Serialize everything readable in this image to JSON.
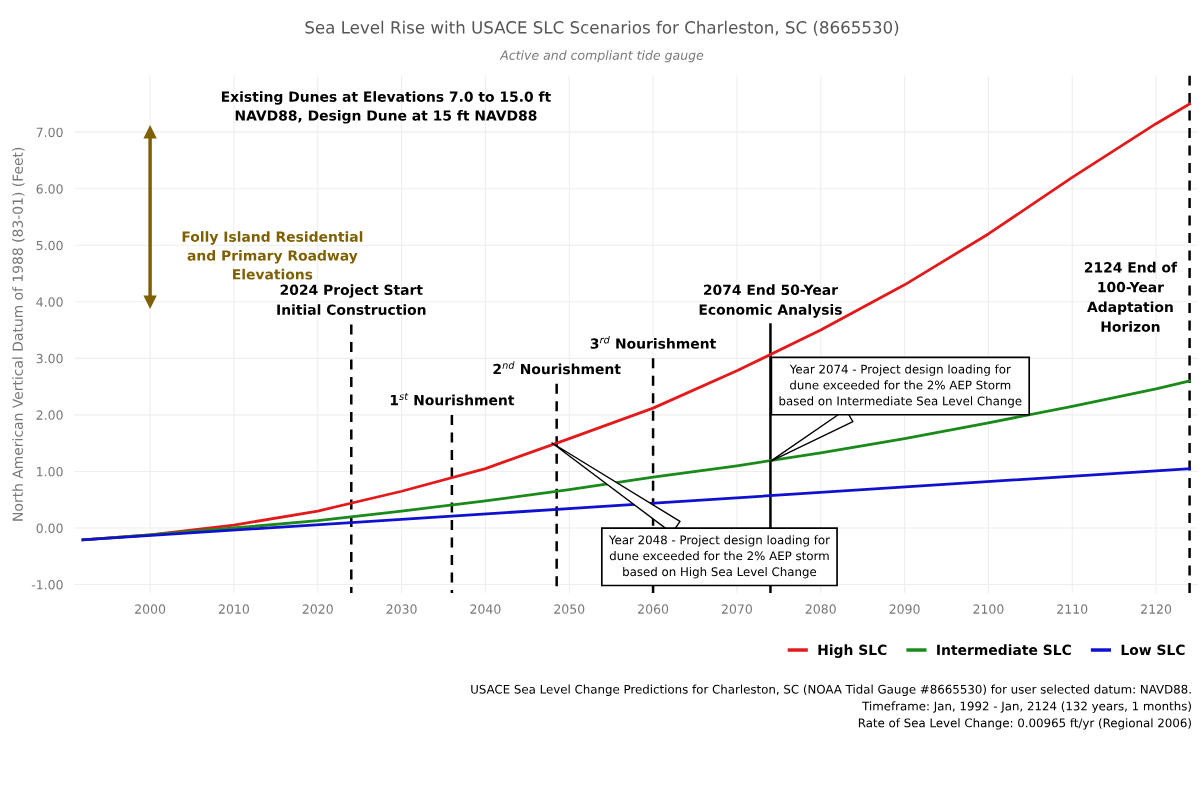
{
  "chart_data": {
    "type": "line",
    "title": "Sea Level Rise with USACE SLC Scenarios for Charleston, SC (8665530)",
    "subtitle": "Active and compliant tide gauge",
    "ylabel": "North American Vertical Datum of 1988 (83-01) (Feet)",
    "xlim": [
      1991,
      2125
    ],
    "ylim": [
      -1.15,
      8.0
    ],
    "xticks": [
      2000,
      2010,
      2020,
      2030,
      2040,
      2050,
      2060,
      2070,
      2080,
      2090,
      2100,
      2110,
      2120
    ],
    "yticks": [
      {
        "value": -1,
        "label": "-1.00"
      },
      {
        "value": 0,
        "label": "0.00"
      },
      {
        "value": 1,
        "label": "1.00"
      },
      {
        "value": 2,
        "label": "2.00"
      },
      {
        "value": 3,
        "label": "3.00"
      },
      {
        "value": 4,
        "label": "4.00"
      },
      {
        "value": 5,
        "label": "5.00"
      },
      {
        "value": 6,
        "label": "6.00"
      },
      {
        "value": 7,
        "label": "7.00"
      }
    ],
    "grid": true,
    "legend": "bottom right",
    "line_style": "solid",
    "series": [
      {
        "name": "High SLC",
        "color": "#e31a1c",
        "x": [
          1992,
          2000,
          2010,
          2020,
          2030,
          2040,
          2050,
          2060,
          2070,
          2080,
          2090,
          2100,
          2110,
          2120,
          2124
        ],
        "values": [
          -0.21,
          -0.12,
          0.05,
          0.3,
          0.65,
          1.05,
          1.58,
          2.12,
          2.78,
          3.5,
          4.3,
          5.2,
          6.2,
          7.15,
          7.5
        ]
      },
      {
        "name": "Intermediate SLC",
        "color": "#1a8a1a",
        "x": [
          1992,
          2000,
          2010,
          2020,
          2030,
          2040,
          2050,
          2060,
          2070,
          2080,
          2090,
          2100,
          2110,
          2120,
          2124
        ],
        "values": [
          -0.21,
          -0.12,
          0.0,
          0.13,
          0.3,
          0.48,
          0.68,
          0.9,
          1.1,
          1.33,
          1.58,
          1.86,
          2.15,
          2.46,
          2.6
        ]
      },
      {
        "name": "Low SLC",
        "color": "#1010d0",
        "x": [
          1992,
          2124
        ],
        "values": [
          -0.21,
          1.05
        ]
      },
      {
        "color": "#000000",
        "line_style": "dashed",
        "x": [
          2024,
          2024
        ],
        "values": [
          3.6,
          -1.15
        ]
      },
      {
        "color": "#000000",
        "line_style": "dashed",
        "x": [
          2036,
          2036
        ],
        "values": [
          2.0,
          -1.15
        ]
      },
      {
        "color": "#000000",
        "line_style": "dashed",
        "x": [
          2048.5,
          2048.5
        ],
        "values": [
          2.55,
          -1.15
        ]
      },
      {
        "color": "#000000",
        "line_style": "dashed",
        "x": [
          2060,
          2060
        ],
        "values": [
          3.0,
          -1.15
        ]
      },
      {
        "color": "#000000",
        "line_style": "solid",
        "x": [
          2074,
          2074
        ],
        "values": [
          3.6,
          -1.15
        ]
      },
      {
        "color": "#000000",
        "line_style": "dashed",
        "x": [
          2124,
          2124
        ],
        "values": [
          8.0,
          -1.15
        ]
      },
      {
        "color": "#7f6000",
        "line_style": "solid",
        "marker": "triangle",
        "x": [
          2000,
          2000
        ],
        "values": [
          7.0,
          4.0
        ]
      }
    ],
    "annotations": [
      "Folly Island Residential\nand Primary Roadway\nElevations",
      "Existing Dunes at Elevations 7.0 to 15.0 ft\nNAVD88, Design Dune at 15 ft NAVD88",
      {
        "text": "2024 Project Start\nInitial Construction",
        "x": 2024,
        "y": 3.6
      },
      {
        "text": "1$^{st}$ Nourishment",
        "x": 2036,
        "y": 2.0
      },
      {
        "text": "2$^{nd}$ Nourishment",
        "x": 2048.5,
        "y": 2.55
      },
      {
        "text": "3$^{rd}$ Nourishment",
        "x": 2060,
        "y": 3.0
      },
      {
        "text": "2074 End 50-Year\nEconomic Analysis",
        "x": 2074,
        "y": 3.6
      },
      {
        "text": "2124 End of\n100-Year\nAdaptation\nHorizon",
        "x": 2124,
        "y": 3.3
      },
      "Year 2048 - Project design loading for\ndune exceeded for the 2% AEP storm\nbased on High Sea Level Change",
      "Year 2074 - Project design loading for\ndune exceeded for the 2% AEP Storm\nbased on Intermediate Sea Level Change",
      "USACE Sea Level Change Predictions for Charleston, SC (NOAA Tidal Gauge #8665530) for user selected datum: NAVD88.\nTimeframe: Jan, 1992 - Jan, 2124 (132 years, 1 months)\nRate of Sea Level Change: 0.00965 ft/yr (Regional 2006)"
    ]
  }
}
